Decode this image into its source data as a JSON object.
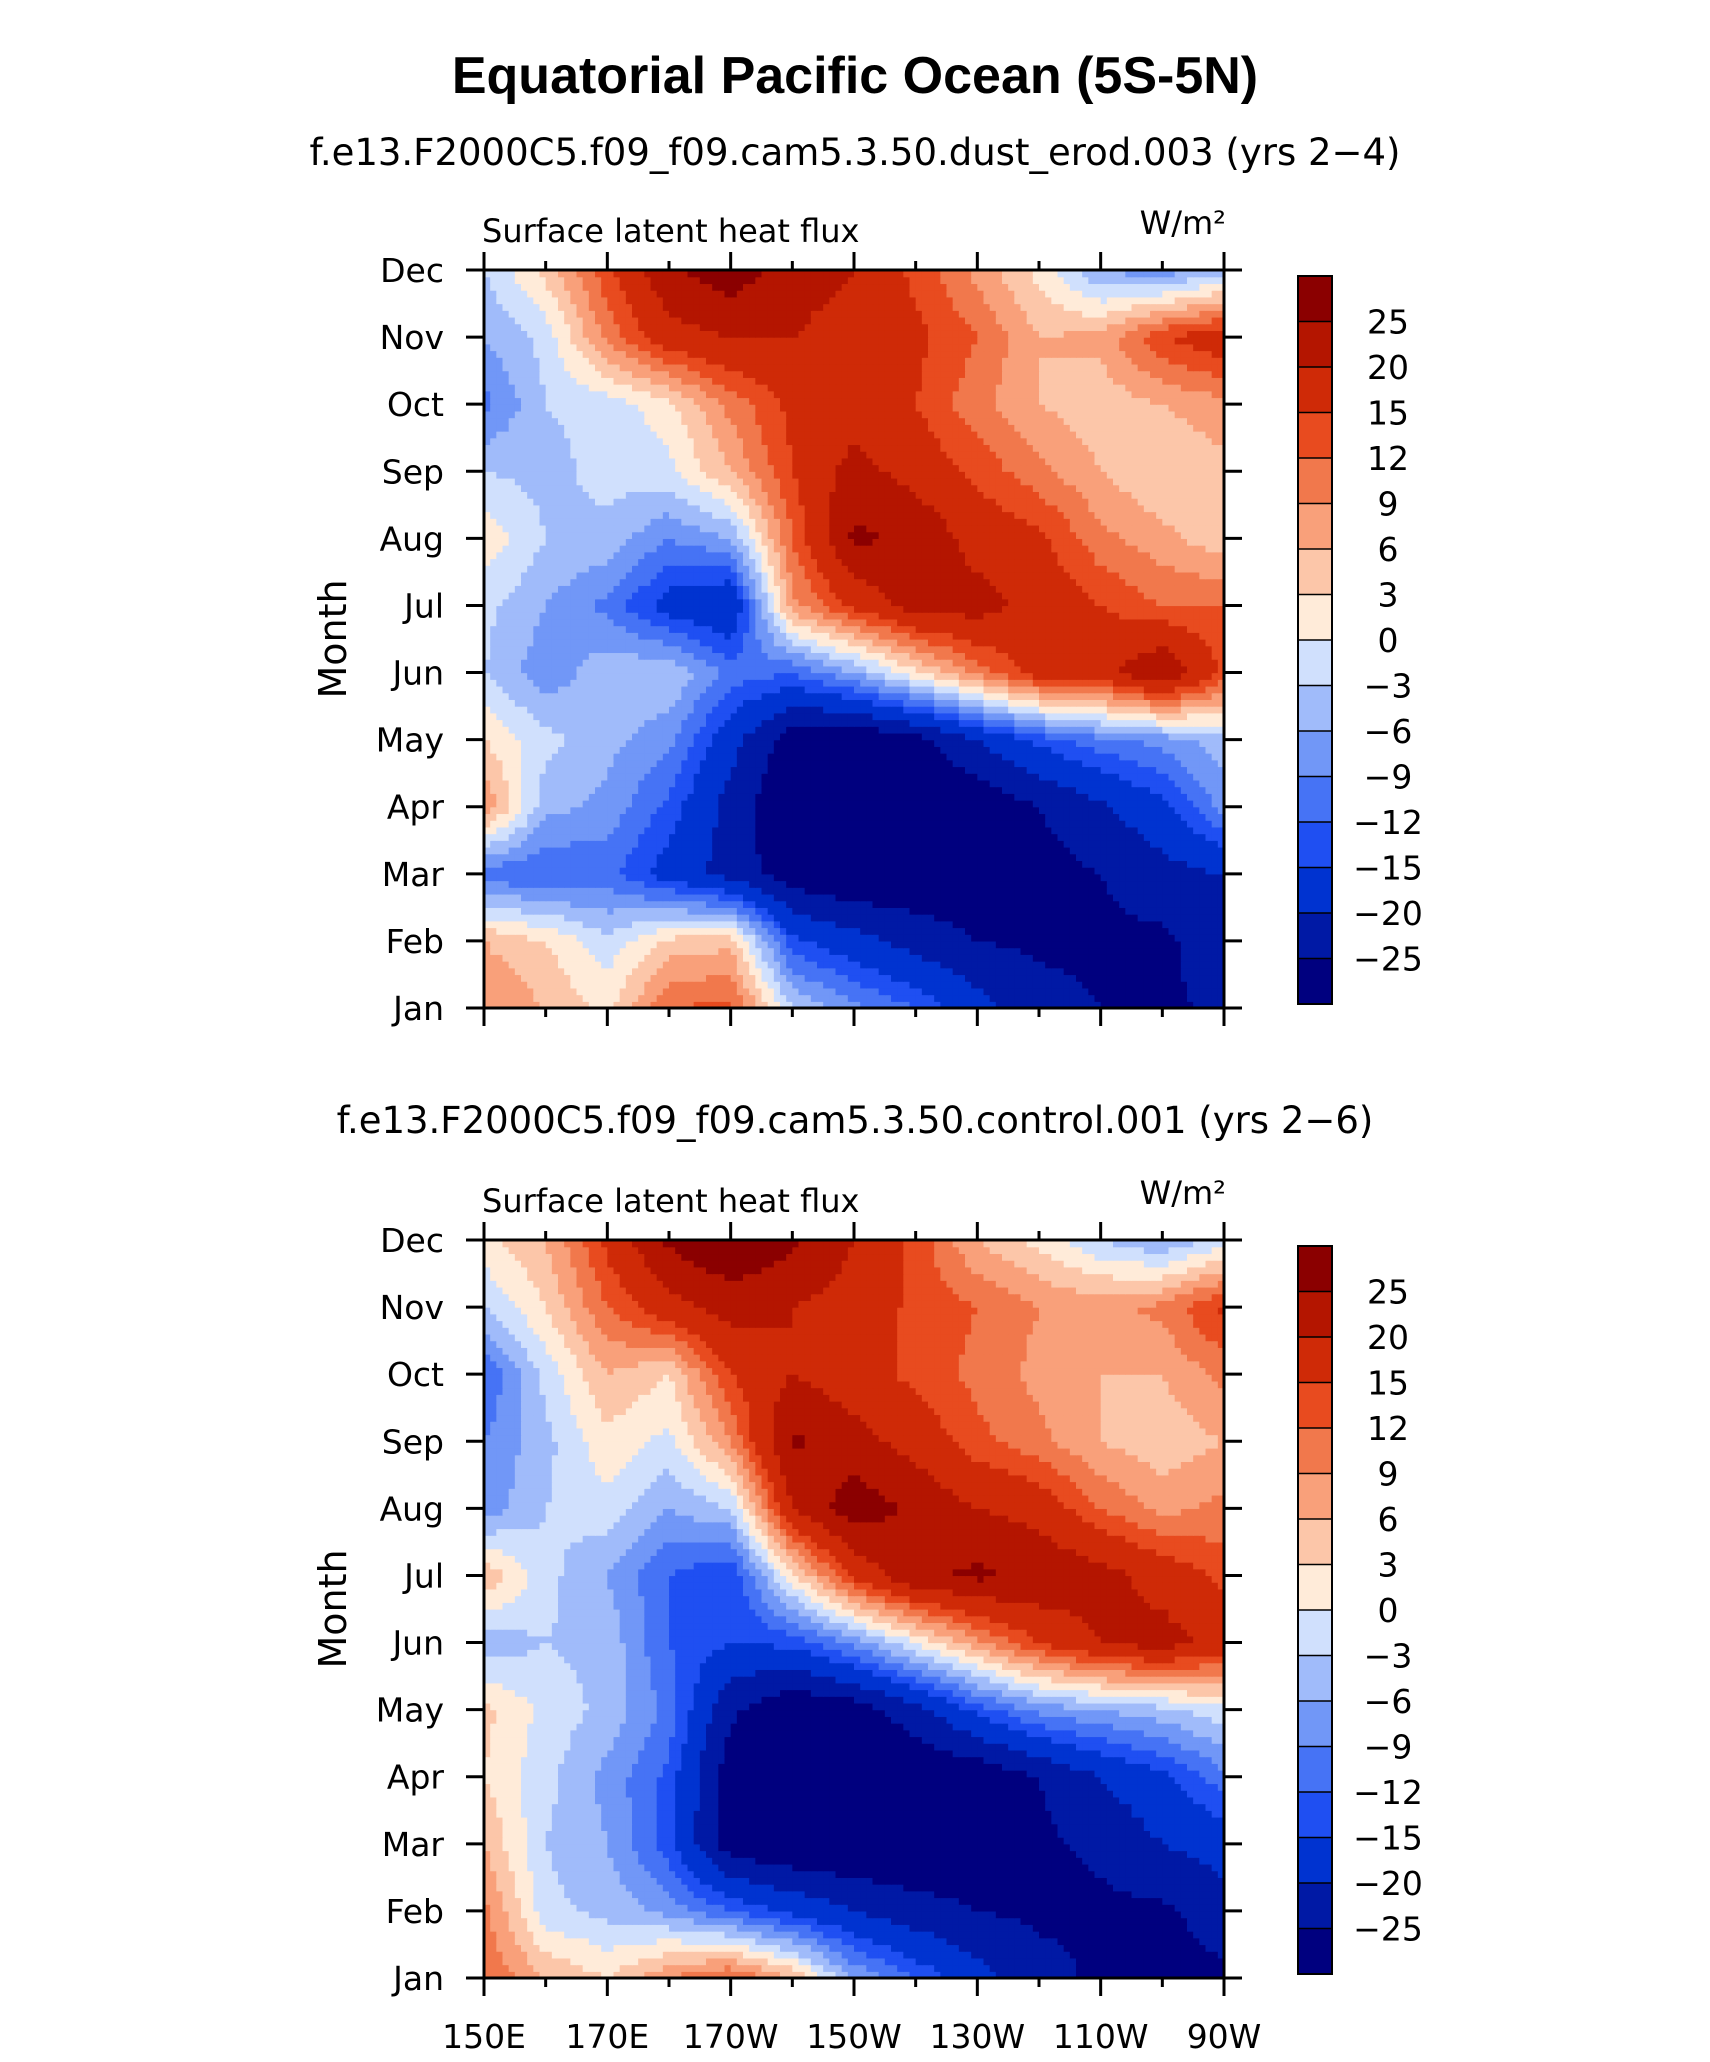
{
  "title": "Equatorial Pacific Ocean (5S-5N)",
  "colors": [
    "#00007f",
    "#0019a5",
    "#0033d0",
    "#1f4ff2",
    "#4673f5",
    "#7197f7",
    "#a0bbfa",
    "#d0e0fd",
    "#ffebd9",
    "#fcc6a9",
    "#f9a07a",
    "#f1784c",
    "#e84b1f",
    "#cf2a07",
    "#b41500",
    "#8b0000"
  ],
  "chart_data": [
    {
      "type": "heatmap",
      "subtitle": "f.e13.F2000C5.f09_f09.cam5.3.50.dust_erod.003 (yrs 2−4)",
      "left_label": "Surface latent heat flux",
      "units_label": "W/m²",
      "ylabel": "Month",
      "x_ticks": [
        "150E",
        "170E",
        "170W",
        "150W",
        "130W",
        "110W",
        "90W"
      ],
      "x_tick_values": [
        150,
        170,
        190,
        210,
        230,
        250,
        270
      ],
      "y_ticks": [
        "Jan",
        "Feb",
        "Mar",
        "Apr",
        "May",
        "Jun",
        "Jul",
        "Aug",
        "Sep",
        "Oct",
        "Nov",
        "Dec"
      ],
      "x_range": [
        150,
        270
      ],
      "colorbar_levels": [
        -25,
        -20,
        -15,
        -12,
        -9,
        -6,
        -3,
        0,
        3,
        6,
        9,
        12,
        15,
        20,
        25
      ],
      "colorbar_labels": [
        "25",
        "20",
        "15",
        "12",
        "9",
        "6",
        "3",
        "0",
        "−3",
        "−6",
        "−9",
        "−12",
        "−15",
        "−20",
        "−25"
      ],
      "lon": [
        150,
        160,
        170,
        180,
        190,
        200,
        210,
        220,
        230,
        240,
        250,
        260,
        270
      ],
      "months": [
        "Jan",
        "Feb",
        "Mar",
        "Apr",
        "May",
        "Jun",
        "Jul",
        "Aug",
        "Sep",
        "Oct",
        "Nov",
        "Dec"
      ],
      "values": [
        [
          9,
          6,
          2,
          12,
          13,
          -3,
          -8,
          -12,
          -18,
          -23,
          -25,
          -26,
          -24
        ],
        [
          6,
          3,
          -2,
          4,
          5,
          -14,
          -18,
          -22,
          -25,
          -26,
          -26,
          -26,
          -22
        ],
        [
          -11,
          -12,
          -11,
          -17,
          -22,
          -28,
          -30,
          -29,
          -28,
          -27,
          -25,
          -22,
          -20
        ],
        [
          9,
          -5,
          -7,
          -13,
          -22,
          -30,
          -30,
          -30,
          -29,
          -25,
          -21,
          -16,
          -8
        ],
        [
          3,
          -2,
          -5,
          -8,
          -18,
          -28,
          -30,
          -27,
          -20,
          -14,
          -10,
          -8,
          -4
        ],
        [
          -3,
          -8,
          -4,
          -3,
          -10,
          -12,
          -6,
          2,
          10,
          17,
          18,
          25,
          14
        ],
        [
          -2,
          -6,
          -10,
          -17,
          -20,
          8,
          16,
          22,
          22,
          18,
          15,
          12,
          12
        ],
        [
          2,
          -3,
          -4,
          -9,
          -6,
          12,
          26,
          24,
          18,
          16,
          10,
          7,
          4
        ],
        [
          -3,
          -4,
          -2,
          -1,
          6,
          15,
          22,
          18,
          14,
          10,
          6,
          3,
          5
        ],
        [
          -10,
          -3,
          -2,
          2,
          10,
          16,
          17,
          15,
          10,
          6,
          4,
          6,
          8
        ],
        [
          -6,
          -2,
          10,
          18,
          20,
          20,
          18,
          16,
          12,
          6,
          7,
          15,
          18
        ],
        [
          -3,
          4,
          14,
          24,
          28,
          22,
          20,
          14,
          8,
          2,
          -6,
          -8,
          -4
        ]
      ]
    },
    {
      "type": "heatmap",
      "subtitle": "f.e13.F2000C5.f09_f09.cam5.3.50.control.001 (yrs 2−6)",
      "left_label": "Surface latent heat flux",
      "units_label": "W/m²",
      "ylabel": "Month",
      "x_ticks": [
        "150E",
        "170E",
        "170W",
        "150W",
        "130W",
        "110W",
        "90W"
      ],
      "x_tick_values": [
        150,
        170,
        190,
        210,
        230,
        250,
        270
      ],
      "y_ticks": [
        "Jan",
        "Feb",
        "Mar",
        "Apr",
        "May",
        "Jun",
        "Jul",
        "Aug",
        "Sep",
        "Oct",
        "Nov",
        "Dec"
      ],
      "x_range": [
        150,
        270
      ],
      "colorbar_levels": [
        -25,
        -20,
        -15,
        -12,
        -9,
        -6,
        -3,
        0,
        3,
        6,
        9,
        12,
        15,
        20,
        25
      ],
      "colorbar_labels": [
        "25",
        "20",
        "15",
        "12",
        "9",
        "6",
        "3",
        "0",
        "−3",
        "−6",
        "−9",
        "−12",
        "−15",
        "−20",
        "−25"
      ],
      "lon": [
        150,
        160,
        170,
        180,
        190,
        200,
        210,
        220,
        230,
        240,
        250,
        260,
        270
      ],
      "months": [
        "Jan",
        "Feb",
        "Mar",
        "Apr",
        "May",
        "Jun",
        "Jul",
        "Aug",
        "Sep",
        "Oct",
        "Nov",
        "Dec"
      ],
      "values": [
        [
          12,
          6,
          3,
          9,
          13,
          6,
          -6,
          -12,
          -18,
          -23,
          -26,
          -28,
          -26
        ],
        [
          10,
          -2,
          -4,
          -7,
          -12,
          -16,
          -20,
          -23,
          -25,
          -26,
          -26,
          -26,
          -22
        ],
        [
          6,
          -3,
          -6,
          -14,
          -28,
          -30,
          -30,
          -30,
          -28,
          -26,
          -24,
          -20,
          -18
        ],
        [
          3,
          -2,
          -7,
          -13,
          -28,
          -30,
          -30,
          -30,
          -29,
          -25,
          -20,
          -16,
          -10
        ],
        [
          4,
          -1,
          -4,
          -10,
          -24,
          -30,
          -28,
          -22,
          -14,
          -8,
          -6,
          -4,
          -1
        ],
        [
          -5,
          -3,
          -4,
          -12,
          -15,
          -14,
          -8,
          0,
          8,
          15,
          20,
          22,
          18
        ],
        [
          6,
          -2,
          -6,
          -12,
          -15,
          2,
          16,
          24,
          26,
          24,
          22,
          18,
          14
        ],
        [
          -8,
          -3,
          -1,
          -6,
          -3,
          20,
          28,
          24,
          20,
          18,
          12,
          8,
          10
        ],
        [
          -9,
          -4,
          2,
          -1,
          9,
          26,
          22,
          18,
          13,
          10,
          6,
          4,
          6
        ],
        [
          -12,
          -2,
          6,
          3,
          15,
          20,
          17,
          14,
          11,
          8,
          6,
          6,
          10
        ],
        [
          -3,
          3,
          12,
          18,
          22,
          20,
          18,
          14,
          12,
          9,
          8,
          10,
          16
        ],
        [
          2,
          6,
          16,
          26,
          30,
          26,
          20,
          14,
          6,
          2,
          -3,
          -6,
          -2
        ]
      ]
    }
  ]
}
